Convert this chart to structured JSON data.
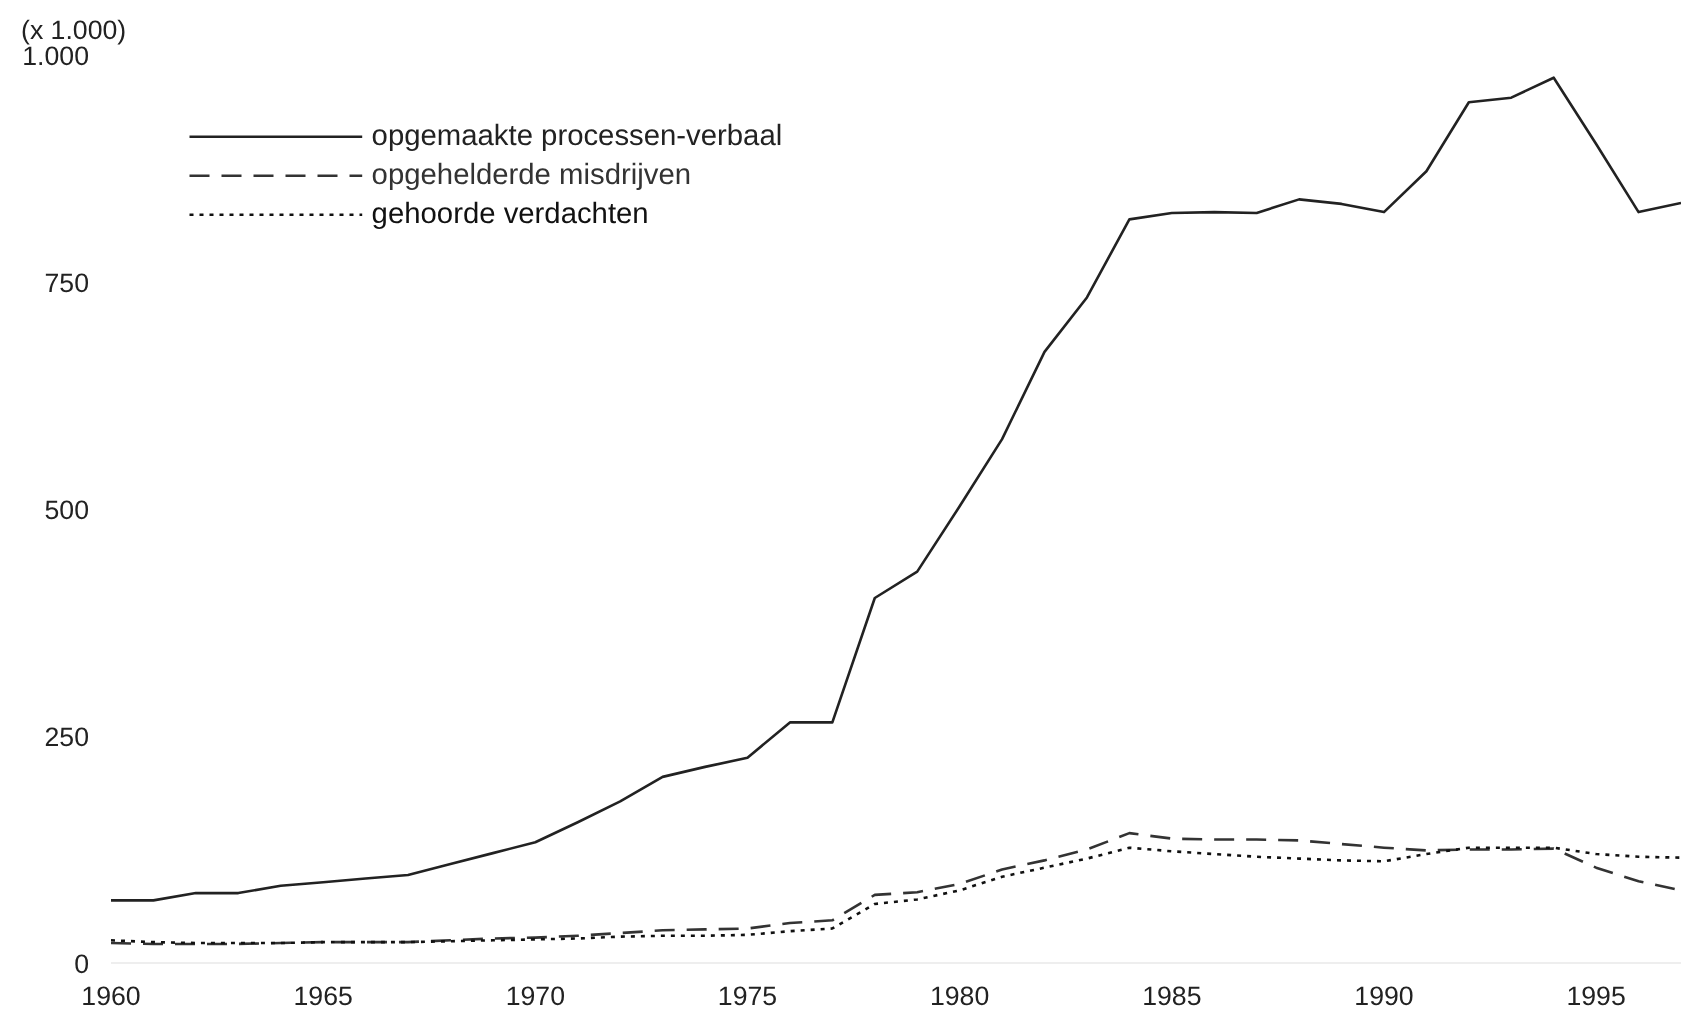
{
  "chart_data": {
    "type": "line",
    "ylabel": "(x 1.000)",
    "x": [
      1960,
      1961,
      1962,
      1963,
      1964,
      1965,
      1966,
      1967,
      1968,
      1969,
      1970,
      1971,
      1972,
      1973,
      1974,
      1975,
      1976,
      1977,
      1978,
      1979,
      1980,
      1981,
      1982,
      1983,
      1984,
      1985,
      1986,
      1987,
      1988,
      1989,
      1990,
      1991,
      1992,
      1993,
      1994,
      1995,
      1996,
      1997
    ],
    "series": [
      {
        "name": "opgemaakte processen-verbaal",
        "color": "#222222",
        "line_style": "solid",
        "values": [
          69,
          69,
          77,
          77,
          85,
          89,
          93,
          97,
          109,
          121,
          133,
          155,
          178,
          205,
          216,
          226,
          265,
          265,
          402,
          431,
          503,
          577,
          673,
          733,
          819,
          826,
          827,
          826,
          841,
          836,
          827,
          872,
          948,
          953,
          975,
          902,
          827,
          837
        ]
      },
      {
        "name": "opgehelderde misdrijven",
        "color": "#333333",
        "line_style": "dashed",
        "values": [
          22,
          21,
          21,
          21,
          22,
          23,
          23,
          23,
          25,
          27,
          28,
          30,
          33,
          36,
          37,
          38,
          44,
          47,
          75,
          78,
          87,
          103,
          113,
          125,
          143,
          137,
          136,
          136,
          135,
          131,
          127,
          124,
          125,
          125,
          126,
          105,
          90,
          80
        ]
      },
      {
        "name": "gehoorde verdachten",
        "color": "#111111",
        "line_style": "dotted",
        "values": [
          25,
          23,
          22,
          22,
          22,
          23,
          23,
          23,
          24,
          25,
          26,
          27,
          29,
          30,
          30,
          31,
          35,
          38,
          65,
          70,
          80,
          95,
          105,
          115,
          127,
          123,
          120,
          117,
          115,
          113,
          112,
          120,
          127,
          127,
          127,
          120,
          117,
          116
        ]
      }
    ],
    "xlim": [
      1960,
      1997
    ],
    "ylim": [
      0,
      1000
    ],
    "xticks": [
      1960,
      1965,
      1970,
      1975,
      1980,
      1985,
      1990,
      1995
    ],
    "yticks": [
      0,
      250,
      500,
      750,
      {
        "value": 1000,
        "label": "1.000"
      }
    ],
    "grid": false,
    "legend": "top left"
  }
}
